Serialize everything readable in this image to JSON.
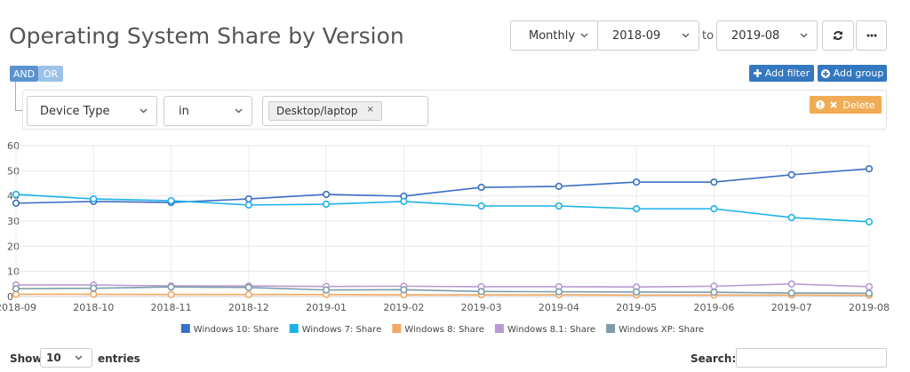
{
  "header": {
    "title": "Operating System Share by Version"
  },
  "controls": {
    "period": "Monthly",
    "from": "2018-09",
    "to_label": "to",
    "to": "2019-08"
  },
  "filter": {
    "logic_and": "AND",
    "logic_or": "OR",
    "field": "Device Type",
    "operator": "in",
    "value": "Desktop/laptop",
    "remove": "×",
    "add_filter": "Add filter",
    "add_group": "Add group",
    "delete": "Delete"
  },
  "chart_data": {
    "type": "line",
    "categories": [
      "2018-09",
      "2018-10",
      "2018-11",
      "2018-12",
      "2019-01",
      "2019-02",
      "2019-03",
      "2019-04",
      "2019-05",
      "2019-06",
      "2019-07",
      "2019-08"
    ],
    "series": [
      {
        "name": "Windows 10: Share",
        "color": "#3a6fc4",
        "values": [
          37.1,
          37.8,
          37.4,
          38.8,
          40.6,
          39.9,
          43.4,
          43.8,
          45.5,
          45.5,
          48.4,
          50.8
        ]
      },
      {
        "name": "Windows 7: Share",
        "color": "#1eb1e9",
        "values": [
          40.6,
          38.8,
          38.1,
          36.4,
          36.7,
          37.8,
          36.0,
          36.0,
          34.9,
          34.9,
          31.4,
          29.7
        ]
      },
      {
        "name": "Windows 8: Share",
        "color": "#f2a862",
        "values": [
          0.9,
          0.9,
          0.8,
          0.8,
          0.8,
          0.7,
          0.7,
          0.7,
          0.6,
          0.6,
          0.6,
          0.5
        ]
      },
      {
        "name": "Windows 8.1: Share",
        "color": "#b89bd2",
        "values": [
          4.6,
          4.6,
          4.2,
          4.2,
          4.0,
          4.1,
          3.9,
          3.9,
          3.8,
          4.1,
          5.0,
          3.9
        ]
      },
      {
        "name": "Windows XP: Share",
        "color": "#7d9dab",
        "values": [
          3.1,
          3.3,
          3.8,
          3.6,
          2.6,
          2.7,
          2.0,
          1.9,
          1.8,
          1.7,
          1.4,
          1.3
        ]
      }
    ],
    "ylim": [
      0,
      60
    ],
    "yticks": [
      0,
      10,
      20,
      30,
      40,
      50,
      60
    ],
    "grid": true
  },
  "table_controls": {
    "show": "Show",
    "length": "10",
    "entries": "entries",
    "search": "Search:"
  }
}
